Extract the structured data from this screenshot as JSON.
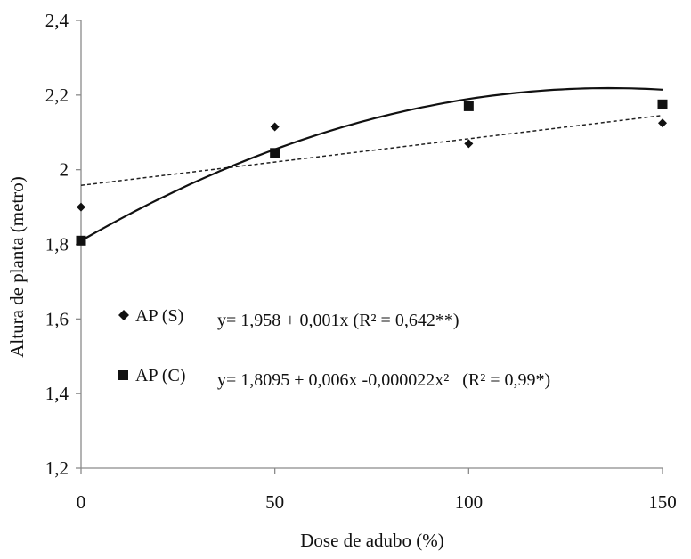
{
  "chart_data": {
    "type": "scatter",
    "xlabel": "Dose de adubo (%)",
    "ylabel": "Altura de planta (metro)",
    "xlim": [
      0,
      150
    ],
    "ylim": [
      1.2,
      2.4
    ],
    "x_ticks": [
      0,
      50,
      100,
      150
    ],
    "x_tick_labels": [
      "0",
      "50",
      "100",
      "150"
    ],
    "y_ticks": [
      1.2,
      1.4,
      1.6,
      1.8,
      2.0,
      2.2,
      2.4
    ],
    "y_tick_labels": [
      "1,2",
      "1,4",
      "1,6",
      "1,8",
      "2",
      "2,2",
      "2,4"
    ],
    "grid": false,
    "legend_position": "center-left",
    "series": [
      {
        "name": "AP (S)",
        "marker": "diamond",
        "x": [
          0,
          50,
          100,
          150
        ],
        "y": [
          1.9,
          2.115,
          2.07,
          2.125
        ],
        "trendline": "linear-dashed",
        "equation": "y= 1,958 + 0,001x (R² = 0,642**)",
        "coefficients": [
          1.958,
          0.00125
        ]
      },
      {
        "name": "AP (C)",
        "marker": "square",
        "x": [
          0,
          50,
          100,
          150
        ],
        "y": [
          1.81,
          2.045,
          2.17,
          2.175
        ],
        "trendline": "quadratic-solid",
        "equation": "y= 1,8095 + 0,006x -0,000022x²   (R² = 0,99*)",
        "coefficients": [
          1.8095,
          0.006,
          -2.2e-05
        ]
      }
    ]
  }
}
